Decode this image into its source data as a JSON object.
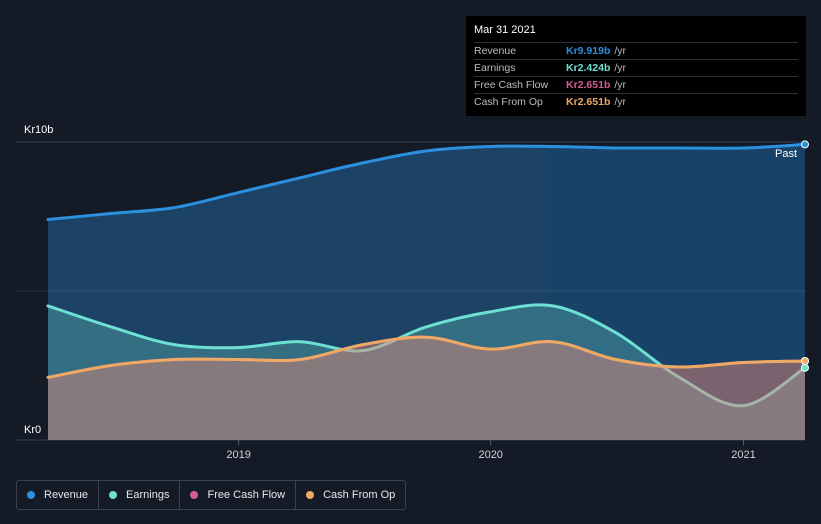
{
  "chart_data": {
    "type": "area",
    "y_axis": {
      "max_label": "Kr10b",
      "min_label": "Kr0",
      "ylim": [
        0,
        10
      ]
    },
    "x_axis": {
      "ticks": [
        "2019",
        "2020",
        "2021"
      ],
      "range": [
        "2018-03-31",
        "2021-03-31"
      ]
    },
    "past_label": "Past",
    "grid": true,
    "series": [
      {
        "name": "Revenue",
        "color": "#2b90e0",
        "unit": "b",
        "points": [
          [
            "2018-03-31",
            7.4
          ],
          [
            "2018-06-30",
            7.6
          ],
          [
            "2018-09-30",
            7.8
          ],
          [
            "2018-12-31",
            8.3
          ],
          [
            "2019-03-31",
            8.8
          ],
          [
            "2019-06-30",
            9.3
          ],
          [
            "2019-09-30",
            9.7
          ],
          [
            "2019-12-31",
            9.85
          ],
          [
            "2020-03-31",
            9.85
          ],
          [
            "2020-06-30",
            9.8
          ],
          [
            "2020-09-30",
            9.8
          ],
          [
            "2020-12-31",
            9.8
          ],
          [
            "2021-03-31",
            9.919
          ]
        ]
      },
      {
        "name": "Earnings",
        "color": "#6ee0d2",
        "unit": "b",
        "points": [
          [
            "2018-03-31",
            4.5
          ],
          [
            "2018-06-30",
            3.8
          ],
          [
            "2018-09-30",
            3.2
          ],
          [
            "2018-12-31",
            3.1
          ],
          [
            "2019-03-31",
            3.3
          ],
          [
            "2019-06-30",
            3.0
          ],
          [
            "2019-09-30",
            3.8
          ],
          [
            "2019-12-31",
            4.3
          ],
          [
            "2020-03-31",
            4.5
          ],
          [
            "2020-06-30",
            3.6
          ],
          [
            "2020-09-30",
            2.1
          ],
          [
            "2020-12-31",
            1.15
          ],
          [
            "2021-03-31",
            2.424
          ]
        ]
      },
      {
        "name": "Free Cash Flow",
        "color": "#d65b94",
        "unit": "b",
        "points": [
          [
            "2018-03-31",
            2.1
          ],
          [
            "2018-06-30",
            2.5
          ],
          [
            "2018-09-30",
            2.7
          ],
          [
            "2018-12-31",
            2.7
          ],
          [
            "2019-03-31",
            2.7
          ],
          [
            "2019-06-30",
            3.2
          ],
          [
            "2019-09-30",
            3.45
          ],
          [
            "2019-12-31",
            3.05
          ],
          [
            "2020-03-31",
            3.3
          ],
          [
            "2020-06-30",
            2.7
          ],
          [
            "2020-09-30",
            2.45
          ],
          [
            "2020-12-31",
            2.6
          ],
          [
            "2021-03-31",
            2.651
          ]
        ]
      },
      {
        "name": "Cash From Op",
        "color": "#eeaa64",
        "unit": "b",
        "points": [
          [
            "2018-03-31",
            2.1
          ],
          [
            "2018-06-30",
            2.5
          ],
          [
            "2018-09-30",
            2.7
          ],
          [
            "2018-12-31",
            2.7
          ],
          [
            "2019-03-31",
            2.7
          ],
          [
            "2019-06-30",
            3.2
          ],
          [
            "2019-09-30",
            3.45
          ],
          [
            "2019-12-31",
            3.05
          ],
          [
            "2020-03-31",
            3.3
          ],
          [
            "2020-06-30",
            2.7
          ],
          [
            "2020-09-30",
            2.45
          ],
          [
            "2020-12-31",
            2.6
          ],
          [
            "2021-03-31",
            2.651
          ]
        ]
      }
    ]
  },
  "tooltip": {
    "date": "Mar 31 2021",
    "rows": [
      {
        "label": "Revenue",
        "value": "Kr9.919b",
        "unit": "/yr",
        "color": "#2b90e0"
      },
      {
        "label": "Earnings",
        "value": "Kr2.424b",
        "unit": "/yr",
        "color": "#6ee0d2"
      },
      {
        "label": "Free Cash Flow",
        "value": "Kr2.651b",
        "unit": "/yr",
        "color": "#d65b94"
      },
      {
        "label": "Cash From Op",
        "value": "Kr2.651b",
        "unit": "/yr",
        "color": "#eeaa64"
      }
    ]
  },
  "legend": [
    {
      "label": "Revenue",
      "color": "#2b90e0"
    },
    {
      "label": "Earnings",
      "color": "#6ee0d2"
    },
    {
      "label": "Free Cash Flow",
      "color": "#d65b94"
    },
    {
      "label": "Cash From Op",
      "color": "#eeaa64"
    }
  ]
}
